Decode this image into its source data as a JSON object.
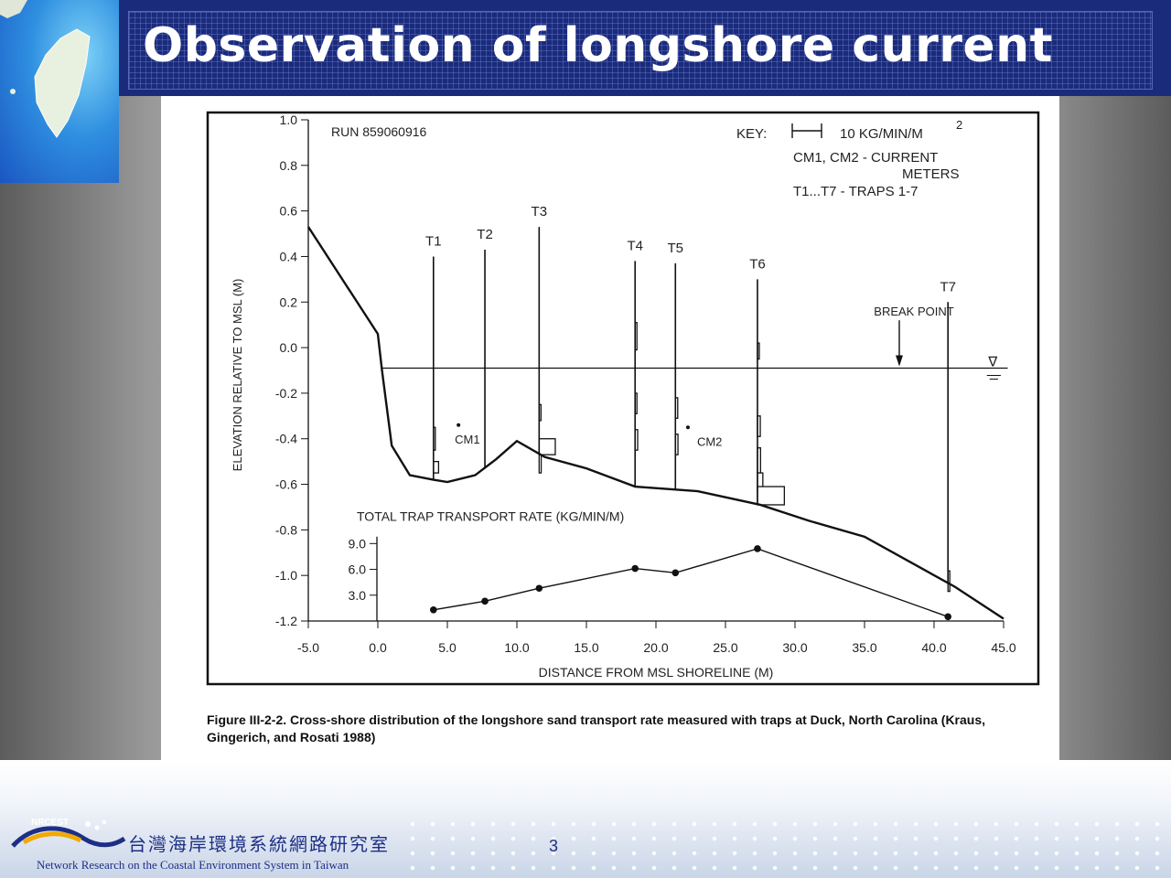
{
  "slide": {
    "title": "Observation of longshore current",
    "page_number": "3"
  },
  "figure": {
    "caption": "Figure III-2-2.   Cross-shore distribution of the longshore sand transport rate measured with traps at Duck, North Carolina (Kraus, Gingerich, and Rosati 1988)"
  },
  "footer": {
    "org_name_cn": "台灣海岸環境系統網路研究室",
    "org_name_en": "Network Research on the Coastal Environment System in Taiwan",
    "logo_text": "NRCEST"
  },
  "chart_data": {
    "type": "line",
    "run_label": "RUN 859060916",
    "xlabel": "DISTANCE FROM MSL SHORELINE (M)",
    "ylabel": "ELEVATION RELATIVE TO MSL (M)",
    "xlim": [
      -5,
      45
    ],
    "ylim": [
      -1.2,
      1.0
    ],
    "x_ticks": [
      "-5.0",
      "0.0",
      "5.0",
      "10.0",
      "15.0",
      "20.0",
      "25.0",
      "30.0",
      "35.0",
      "40.0",
      "45.0"
    ],
    "y_ticks": [
      "1.0",
      "0.8",
      "0.6",
      "0.4",
      "0.2",
      "0.0",
      "-0.2",
      "-0.4",
      "-0.6",
      "-0.8",
      "-1.0",
      "-1.2"
    ],
    "key": {
      "key_label": "KEY:",
      "scale_label": "10 KG/MIN/M",
      "scale_exponent": "2",
      "line1": "CM1, CM2 - CURRENT",
      "line2": "METERS",
      "line3": "T1...T7 - TRAPS 1-7"
    },
    "profile": {
      "x": [
        -5,
        0,
        0.3,
        1,
        2.3,
        4,
        5,
        7,
        8.5,
        10,
        12,
        15,
        18.5,
        23,
        27.5,
        31,
        35,
        41.5,
        45
      ],
      "y": [
        0.53,
        0.06,
        -0.1,
        -0.43,
        -0.56,
        -0.58,
        -0.59,
        -0.56,
        -0.49,
        -0.41,
        -0.48,
        -0.53,
        -0.61,
        -0.63,
        -0.69,
        -0.76,
        -0.83,
        -1.05,
        -1.19
      ]
    },
    "water_level": -0.09,
    "water_symbol": "∇",
    "break_point": {
      "label": "BREAK POINT",
      "x": 37.5
    },
    "traps": [
      {
        "name": "T1",
        "x": 4.0,
        "top": 0.4
      },
      {
        "name": "T2",
        "x": 7.7,
        "top": 0.43
      },
      {
        "name": "T3",
        "x": 11.6,
        "top": 0.53
      },
      {
        "name": "T4",
        "x": 18.5,
        "top": 0.38
      },
      {
        "name": "T5",
        "x": 21.4,
        "top": 0.37
      },
      {
        "name": "T6",
        "x": 27.3,
        "top": 0.3
      },
      {
        "name": "T7",
        "x": 41.0,
        "top": 0.2
      }
    ],
    "trap_rates": [
      {
        "trap": "T1",
        "elev_low": -0.45,
        "elev_high": -0.35,
        "rate": 0.25
      },
      {
        "trap": "T1",
        "elev_low": -0.55,
        "elev_high": -0.5,
        "rate": 2.0
      },
      {
        "trap": "T3",
        "elev_low": -0.32,
        "elev_high": -0.25,
        "rate": 0.6
      },
      {
        "trap": "T3",
        "elev_low": -0.47,
        "elev_high": -0.4,
        "rate": 6.3
      },
      {
        "trap": "T3",
        "elev_low": -0.55,
        "elev_high": -0.47,
        "rate": 0.8
      },
      {
        "trap": "T4",
        "elev_low": -0.01,
        "elev_high": 0.11,
        "rate": 0.3
      },
      {
        "trap": "T4",
        "elev_low": -0.29,
        "elev_high": -0.2,
        "rate": 0.5
      },
      {
        "trap": "T4",
        "elev_low": -0.45,
        "elev_high": -0.36,
        "rate": 1.0
      },
      {
        "trap": "T5",
        "elev_low": -0.31,
        "elev_high": -0.22,
        "rate": 0.9
      },
      {
        "trap": "T5",
        "elev_low": -0.47,
        "elev_high": -0.38,
        "rate": 1.0
      },
      {
        "trap": "T6",
        "elev_low": -0.05,
        "elev_high": 0.02,
        "rate": 0.3
      },
      {
        "trap": "T6",
        "elev_low": -0.39,
        "elev_high": -0.3,
        "rate": 1.1
      },
      {
        "trap": "T6",
        "elev_low": -0.55,
        "elev_high": -0.44,
        "rate": 1.2
      },
      {
        "trap": "T6",
        "elev_low": -0.63,
        "elev_high": -0.55,
        "rate": 2.1
      },
      {
        "trap": "T6",
        "elev_low": -0.69,
        "elev_high": -0.61,
        "rate": 10.5
      },
      {
        "trap": "T7",
        "elev_low": -1.07,
        "elev_high": -0.98,
        "rate": 0.6
      }
    ],
    "current_meters": [
      {
        "name": "CM1",
        "x": 5.8,
        "y": -0.34
      },
      {
        "name": "CM2",
        "x": 22.3,
        "y": -0.35
      }
    ],
    "inset": {
      "title": "TOTAL TRAP TRANSPORT RATE (KG/MIN/M)",
      "y_ticks": [
        "9.0",
        "6.0",
        "3.0"
      ],
      "ylim": [
        0,
        9
      ],
      "x": [
        4.0,
        7.7,
        11.6,
        18.5,
        21.4,
        27.3,
        41.0
      ],
      "values": [
        1.3,
        2.3,
        3.8,
        6.1,
        5.6,
        8.4,
        0.5
      ]
    }
  }
}
